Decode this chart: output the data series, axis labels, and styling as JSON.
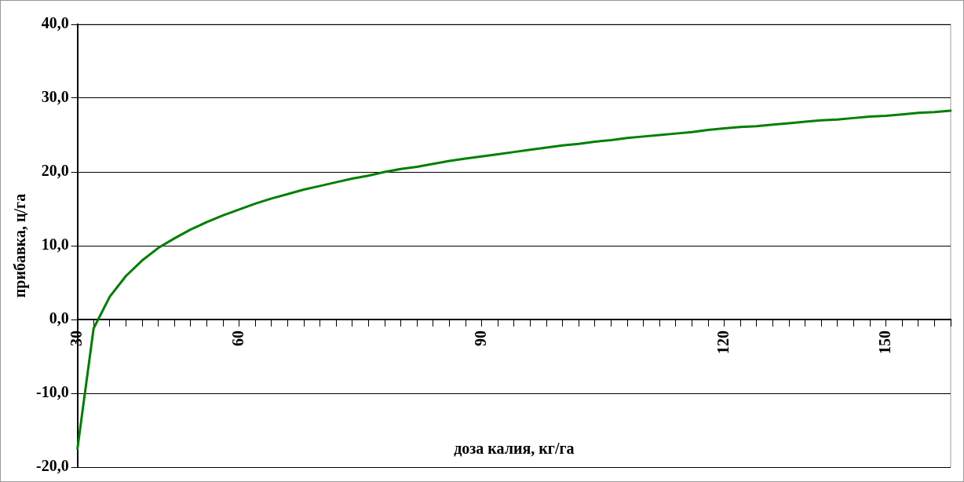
{
  "chart_data": {
    "type": "line",
    "xlabel": "доза калия, кг/га",
    "ylabel": "прибавка, ц/га",
    "categories": [
      "30",
      null,
      null,
      null,
      null,
      null,
      null,
      null,
      null,
      null,
      "60",
      null,
      null,
      null,
      null,
      null,
      null,
      null,
      null,
      null,
      null,
      null,
      null,
      null,
      null,
      "90",
      null,
      null,
      null,
      null,
      null,
      null,
      null,
      null,
      null,
      null,
      null,
      null,
      null,
      null,
      "120",
      null,
      null,
      null,
      null,
      null,
      null,
      null,
      null,
      null,
      "150",
      null,
      null,
      null,
      null
    ],
    "series": [
      {
        "color": "#008000",
        "values": [
          -17.5,
          -1.2,
          3.1,
          5.9,
          8.0,
          9.7,
          11.0,
          12.2,
          13.2,
          14.1,
          14.9,
          15.7,
          16.4,
          17.0,
          17.6,
          18.1,
          18.6,
          19.1,
          19.5,
          20.0,
          20.4,
          20.7,
          21.1,
          21.5,
          21.8,
          22.1,
          22.4,
          22.7,
          23.0,
          23.3,
          23.6,
          23.8,
          24.1,
          24.3,
          24.6,
          24.8,
          25.0,
          25.2,
          25.4,
          25.7,
          25.9,
          26.1,
          26.2,
          26.4,
          26.6,
          26.8,
          27.0,
          27.1,
          27.3,
          27.5,
          27.6,
          27.8,
          28.0,
          28.1,
          28.3
        ]
      }
    ],
    "ylim": [
      -20,
      40
    ],
    "yticks": [
      {
        "value": -20,
        "label": "-20,0"
      },
      {
        "value": -10,
        "label": "-10,0"
      },
      {
        "value": 0,
        "label": "0,0"
      },
      {
        "value": 10,
        "label": "10,0"
      },
      {
        "value": 20,
        "label": "20,0"
      },
      {
        "value": 30,
        "label": "30,0"
      },
      {
        "value": 40,
        "label": "40,0"
      }
    ],
    "grid": "y",
    "marker": "none",
    "line_style": "solid"
  }
}
